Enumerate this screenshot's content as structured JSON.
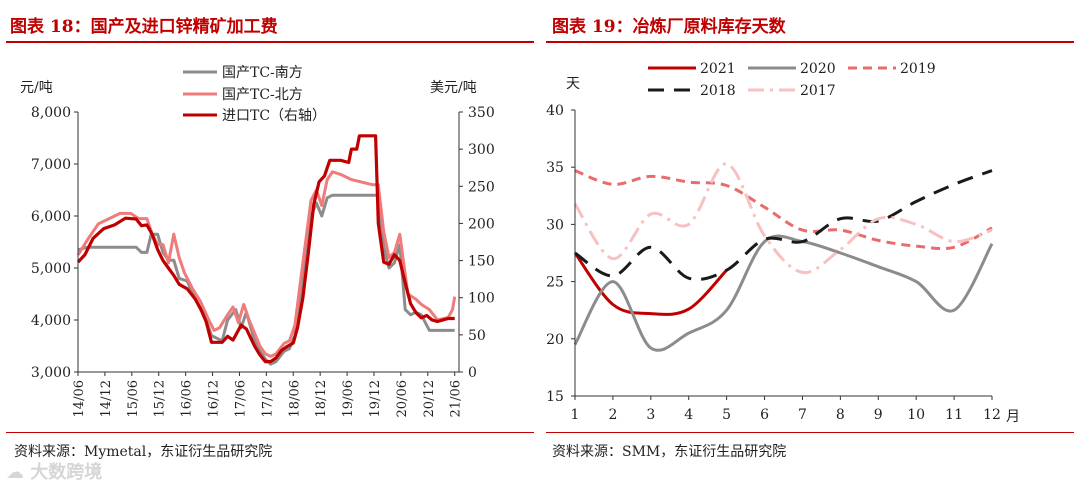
{
  "watermark": "大数跨境",
  "charts": [
    {
      "panel_title": "图表 18：国产及进口锌精矿加工费",
      "source": "资料来源：Mymetal，东证衍生品研究院",
      "chart_data": {
        "type": "line",
        "title": "国产及进口锌精矿加工费",
        "left_axis_label": "元/吨",
        "right_axis_label": "美元/吨",
        "left_ylim": [
          3000,
          8000
        ],
        "left_yticks": [
          "3,000",
          "4,000",
          "5,000",
          "6,000",
          "7,000",
          "8,000"
        ],
        "right_ylim": [
          0,
          350
        ],
        "right_yticks": [
          "0",
          "50",
          "100",
          "150",
          "200",
          "250",
          "300",
          "350"
        ],
        "xlim": [
          2014.42,
          2021.5
        ],
        "x_ticks": [
          {
            "label": "14/06",
            "x": 2014.42
          },
          {
            "label": "14/12",
            "x": 2014.92
          },
          {
            "label": "15/06",
            "x": 2015.42
          },
          {
            "label": "15/12",
            "x": 2015.92
          },
          {
            "label": "16/06",
            "x": 2016.42
          },
          {
            "label": "16/12",
            "x": 2016.92
          },
          {
            "label": "17/06",
            "x": 2017.42
          },
          {
            "label": "17/12",
            "x": 2017.92
          },
          {
            "label": "18/06",
            "x": 2018.42
          },
          {
            "label": "18/12",
            "x": 2018.92
          },
          {
            "label": "19/06",
            "x": 2019.42
          },
          {
            "label": "19/12",
            "x": 2019.92
          },
          {
            "label": "20/06",
            "x": 2020.42
          },
          {
            "label": "20/12",
            "x": 2020.92
          },
          {
            "label": "21/06",
            "x": 2021.42
          }
        ],
        "series": [
          {
            "name": "国产TC-南方",
            "axis": "left",
            "color": "#8c8c8c",
            "width": 3,
            "dash": "",
            "points": [
              [
                2014.42,
                5350
              ],
              [
                2014.6,
                5400
              ],
              [
                2015.0,
                5400
              ],
              [
                2015.3,
                5400
              ],
              [
                2015.5,
                5400
              ],
              [
                2015.6,
                5300
              ],
              [
                2015.7,
                5300
              ],
              [
                2015.78,
                5650
              ],
              [
                2015.9,
                5650
              ],
              [
                2016.0,
                5300
              ],
              [
                2016.1,
                5150
              ],
              [
                2016.2,
                5150
              ],
              [
                2016.3,
                4800
              ],
              [
                2016.45,
                4750
              ],
              [
                2016.6,
                4400
              ],
              [
                2016.8,
                4000
              ],
              [
                2016.9,
                3700
              ],
              [
                2017.0,
                3650
              ],
              [
                2017.1,
                3600
              ],
              [
                2017.2,
                4000
              ],
              [
                2017.35,
                4200
              ],
              [
                2017.45,
                3850
              ],
              [
                2017.55,
                4150
              ],
              [
                2017.7,
                3600
              ],
              [
                2017.8,
                3400
              ],
              [
                2017.9,
                3250
              ],
              [
                2018.0,
                3150
              ],
              [
                2018.1,
                3200
              ],
              [
                2018.25,
                3400
              ],
              [
                2018.35,
                3450
              ],
              [
                2018.45,
                3700
              ],
              [
                2018.55,
                4300
              ],
              [
                2018.65,
                5100
              ],
              [
                2018.75,
                6000
              ],
              [
                2018.85,
                6250
              ],
              [
                2018.95,
                6000
              ],
              [
                2019.05,
                6350
              ],
              [
                2019.15,
                6400
              ],
              [
                2019.3,
                6400
              ],
              [
                2019.5,
                6400
              ],
              [
                2019.75,
                6400
              ],
              [
                2019.9,
                6400
              ],
              [
                2020.0,
                6400
              ],
              [
                2020.1,
                5400
              ],
              [
                2020.2,
                5000
              ],
              [
                2020.3,
                5100
              ],
              [
                2020.4,
                5450
              ],
              [
                2020.5,
                4200
              ],
              [
                2020.6,
                4100
              ],
              [
                2020.7,
                4150
              ],
              [
                2020.8,
                4100
              ],
              [
                2020.95,
                3800
              ],
              [
                2021.1,
                3800
              ],
              [
                2021.3,
                3800
              ],
              [
                2021.42,
                3800
              ]
            ]
          },
          {
            "name": "国产TC-北方",
            "axis": "left",
            "color": "#f07b7b",
            "width": 3,
            "dash": "",
            "points": [
              [
                2014.42,
                5250
              ],
              [
                2014.6,
                5550
              ],
              [
                2014.8,
                5850
              ],
              [
                2015.0,
                5950
              ],
              [
                2015.2,
                6050
              ],
              [
                2015.4,
                6050
              ],
              [
                2015.55,
                5950
              ],
              [
                2015.7,
                5950
              ],
              [
                2015.8,
                5650
              ],
              [
                2015.9,
                5450
              ],
              [
                2016.0,
                5450
              ],
              [
                2016.1,
                5100
              ],
              [
                2016.2,
                5650
              ],
              [
                2016.3,
                5200
              ],
              [
                2016.4,
                4900
              ],
              [
                2016.55,
                4600
              ],
              [
                2016.7,
                4350
              ],
              [
                2016.85,
                4000
              ],
              [
                2016.95,
                3800
              ],
              [
                2017.05,
                3850
              ],
              [
                2017.2,
                4100
              ],
              [
                2017.3,
                4250
              ],
              [
                2017.4,
                3950
              ],
              [
                2017.5,
                4300
              ],
              [
                2017.6,
                4000
              ],
              [
                2017.7,
                3750
              ],
              [
                2017.8,
                3500
              ],
              [
                2017.9,
                3350
              ],
              [
                2018.0,
                3300
              ],
              [
                2018.1,
                3350
              ],
              [
                2018.25,
                3550
              ],
              [
                2018.35,
                3600
              ],
              [
                2018.45,
                3900
              ],
              [
                2018.55,
                4700
              ],
              [
                2018.65,
                5500
              ],
              [
                2018.75,
                6300
              ],
              [
                2018.85,
                6500
              ],
              [
                2018.95,
                6200
              ],
              [
                2019.05,
                6700
              ],
              [
                2019.15,
                6850
              ],
              [
                2019.3,
                6800
              ],
              [
                2019.5,
                6700
              ],
              [
                2019.7,
                6650
              ],
              [
                2019.9,
                6600
              ],
              [
                2020.0,
                6600
              ],
              [
                2020.1,
                5700
              ],
              [
                2020.2,
                5200
              ],
              [
                2020.3,
                5300
              ],
              [
                2020.4,
                5650
              ],
              [
                2020.55,
                4500
              ],
              [
                2020.7,
                4400
              ],
              [
                2020.8,
                4300
              ],
              [
                2020.95,
                4200
              ],
              [
                2021.1,
                4000
              ],
              [
                2021.3,
                4050
              ],
              [
                2021.38,
                4200
              ],
              [
                2021.42,
                4450
              ]
            ]
          },
          {
            "name": "进口TC（右轴）",
            "axis": "right",
            "color": "#c00000",
            "width": 3.2,
            "dash": "",
            "points": [
              [
                2014.42,
                148
              ],
              [
                2014.55,
                158
              ],
              [
                2014.7,
                180
              ],
              [
                2014.9,
                193
              ],
              [
                2015.1,
                198
              ],
              [
                2015.3,
                207
              ],
              [
                2015.5,
                206
              ],
              [
                2015.6,
                197
              ],
              [
                2015.7,
                198
              ],
              [
                2015.8,
                185
              ],
              [
                2015.9,
                165
              ],
              [
                2016.0,
                150
              ],
              [
                2016.1,
                140
              ],
              [
                2016.2,
                130
              ],
              [
                2016.3,
                118
              ],
              [
                2016.45,
                112
              ],
              [
                2016.6,
                98
              ],
              [
                2016.7,
                85
              ],
              [
                2016.8,
                68
              ],
              [
                2016.9,
                40
              ],
              [
                2017.1,
                40
              ],
              [
                2017.2,
                48
              ],
              [
                2017.3,
                43
              ],
              [
                2017.45,
                63
              ],
              [
                2017.55,
                58
              ],
              [
                2017.7,
                35
              ],
              [
                2017.8,
                23
              ],
              [
                2017.9,
                14
              ],
              [
                2018.0,
                14
              ],
              [
                2018.1,
                19
              ],
              [
                2018.2,
                29
              ],
              [
                2018.3,
                34
              ],
              [
                2018.42,
                39
              ],
              [
                2018.5,
                60
              ],
              [
                2018.6,
                100
              ],
              [
                2018.7,
                160
              ],
              [
                2018.8,
                225
              ],
              [
                2018.9,
                256
              ],
              [
                2019.0,
                264
              ],
              [
                2019.1,
                285
              ],
              [
                2019.3,
                285
              ],
              [
                2019.45,
                282
              ],
              [
                2019.5,
                300
              ],
              [
                2019.6,
                300
              ],
              [
                2019.65,
                318
              ],
              [
                2019.8,
                318
              ],
              [
                2019.95,
                318
              ],
              [
                2020.0,
                200
              ],
              [
                2020.1,
                148
              ],
              [
                2020.2,
                145
              ],
              [
                2020.3,
                158
              ],
              [
                2020.4,
                150
              ],
              [
                2020.5,
                120
              ],
              [
                2020.6,
                92
              ],
              [
                2020.7,
                80
              ],
              [
                2020.8,
                73
              ],
              [
                2020.9,
                76
              ],
              [
                2021.0,
                70
              ],
              [
                2021.1,
                68
              ],
              [
                2021.2,
                70
              ],
              [
                2021.3,
                72
              ],
              [
                2021.42,
                72
              ]
            ]
          }
        ]
      }
    },
    {
      "panel_title": "图表 19：冶炼厂原料库存天数",
      "source": "资料来源：SMM，东证衍生品研究院",
      "chart_data": {
        "type": "line",
        "title": "冶炼厂原料库存天数",
        "ylabel": "天",
        "xlabel": "月",
        "ylim": [
          15,
          40
        ],
        "yticks": [
          "15",
          "20",
          "25",
          "30",
          "35",
          "40"
        ],
        "xlim": [
          1,
          12
        ],
        "categories": [
          "1",
          "2",
          "3",
          "4",
          "5",
          "6",
          "7",
          "8",
          "9",
          "10",
          "11",
          "12"
        ],
        "series": [
          {
            "name": "2021",
            "color": "#c00000",
            "width": 3,
            "dash": "",
            "x": [
              1,
              2,
              3,
              4,
              5
            ],
            "values": [
              27.5,
              23.0,
              22.2,
              22.6,
              26.0
            ]
          },
          {
            "name": "2020",
            "color": "#8c8c8c",
            "width": 3,
            "dash": "",
            "x": [
              1,
              2,
              3,
              4,
              5,
              6,
              7,
              8,
              9,
              10,
              11,
              12
            ],
            "values": [
              19.5,
              25.0,
              19.2,
              20.5,
              22.5,
              28.5,
              28.5,
              27.5,
              26.3,
              25.0,
              22.5,
              28.3
            ]
          },
          {
            "name": "2019",
            "color": "#ea6b6b",
            "width": 3,
            "dash": "9,6",
            "x": [
              1,
              2,
              3,
              4,
              5,
              6,
              7,
              8,
              9,
              10,
              11,
              12
            ],
            "values": [
              34.7,
              33.5,
              34.2,
              33.7,
              33.4,
              31.5,
              29.5,
              29.5,
              28.6,
              28.1,
              28.0,
              29.7
            ]
          },
          {
            "name": "2018",
            "color": "#1a1a1a",
            "width": 3,
            "dash": "16,10",
            "x": [
              1,
              2,
              3,
              4,
              5,
              6,
              7,
              8,
              9,
              10,
              11,
              12
            ],
            "values": [
              27.5,
              25.5,
              28.0,
              25.3,
              26.0,
              28.7,
              28.5,
              30.5,
              30.3,
              32.0,
              33.5,
              34.7
            ]
          },
          {
            "name": "2017",
            "color": "#f7c1c1",
            "width": 3,
            "dash": "16,6,3,6",
            "x": [
              1,
              2,
              3,
              4,
              5,
              6,
              7,
              8,
              9,
              10,
              11,
              12
            ],
            "values": [
              31.8,
              27.0,
              30.9,
              30.0,
              35.3,
              29.0,
              25.8,
              27.8,
              30.5,
              30.0,
              28.5,
              29.5
            ]
          }
        ]
      }
    }
  ]
}
